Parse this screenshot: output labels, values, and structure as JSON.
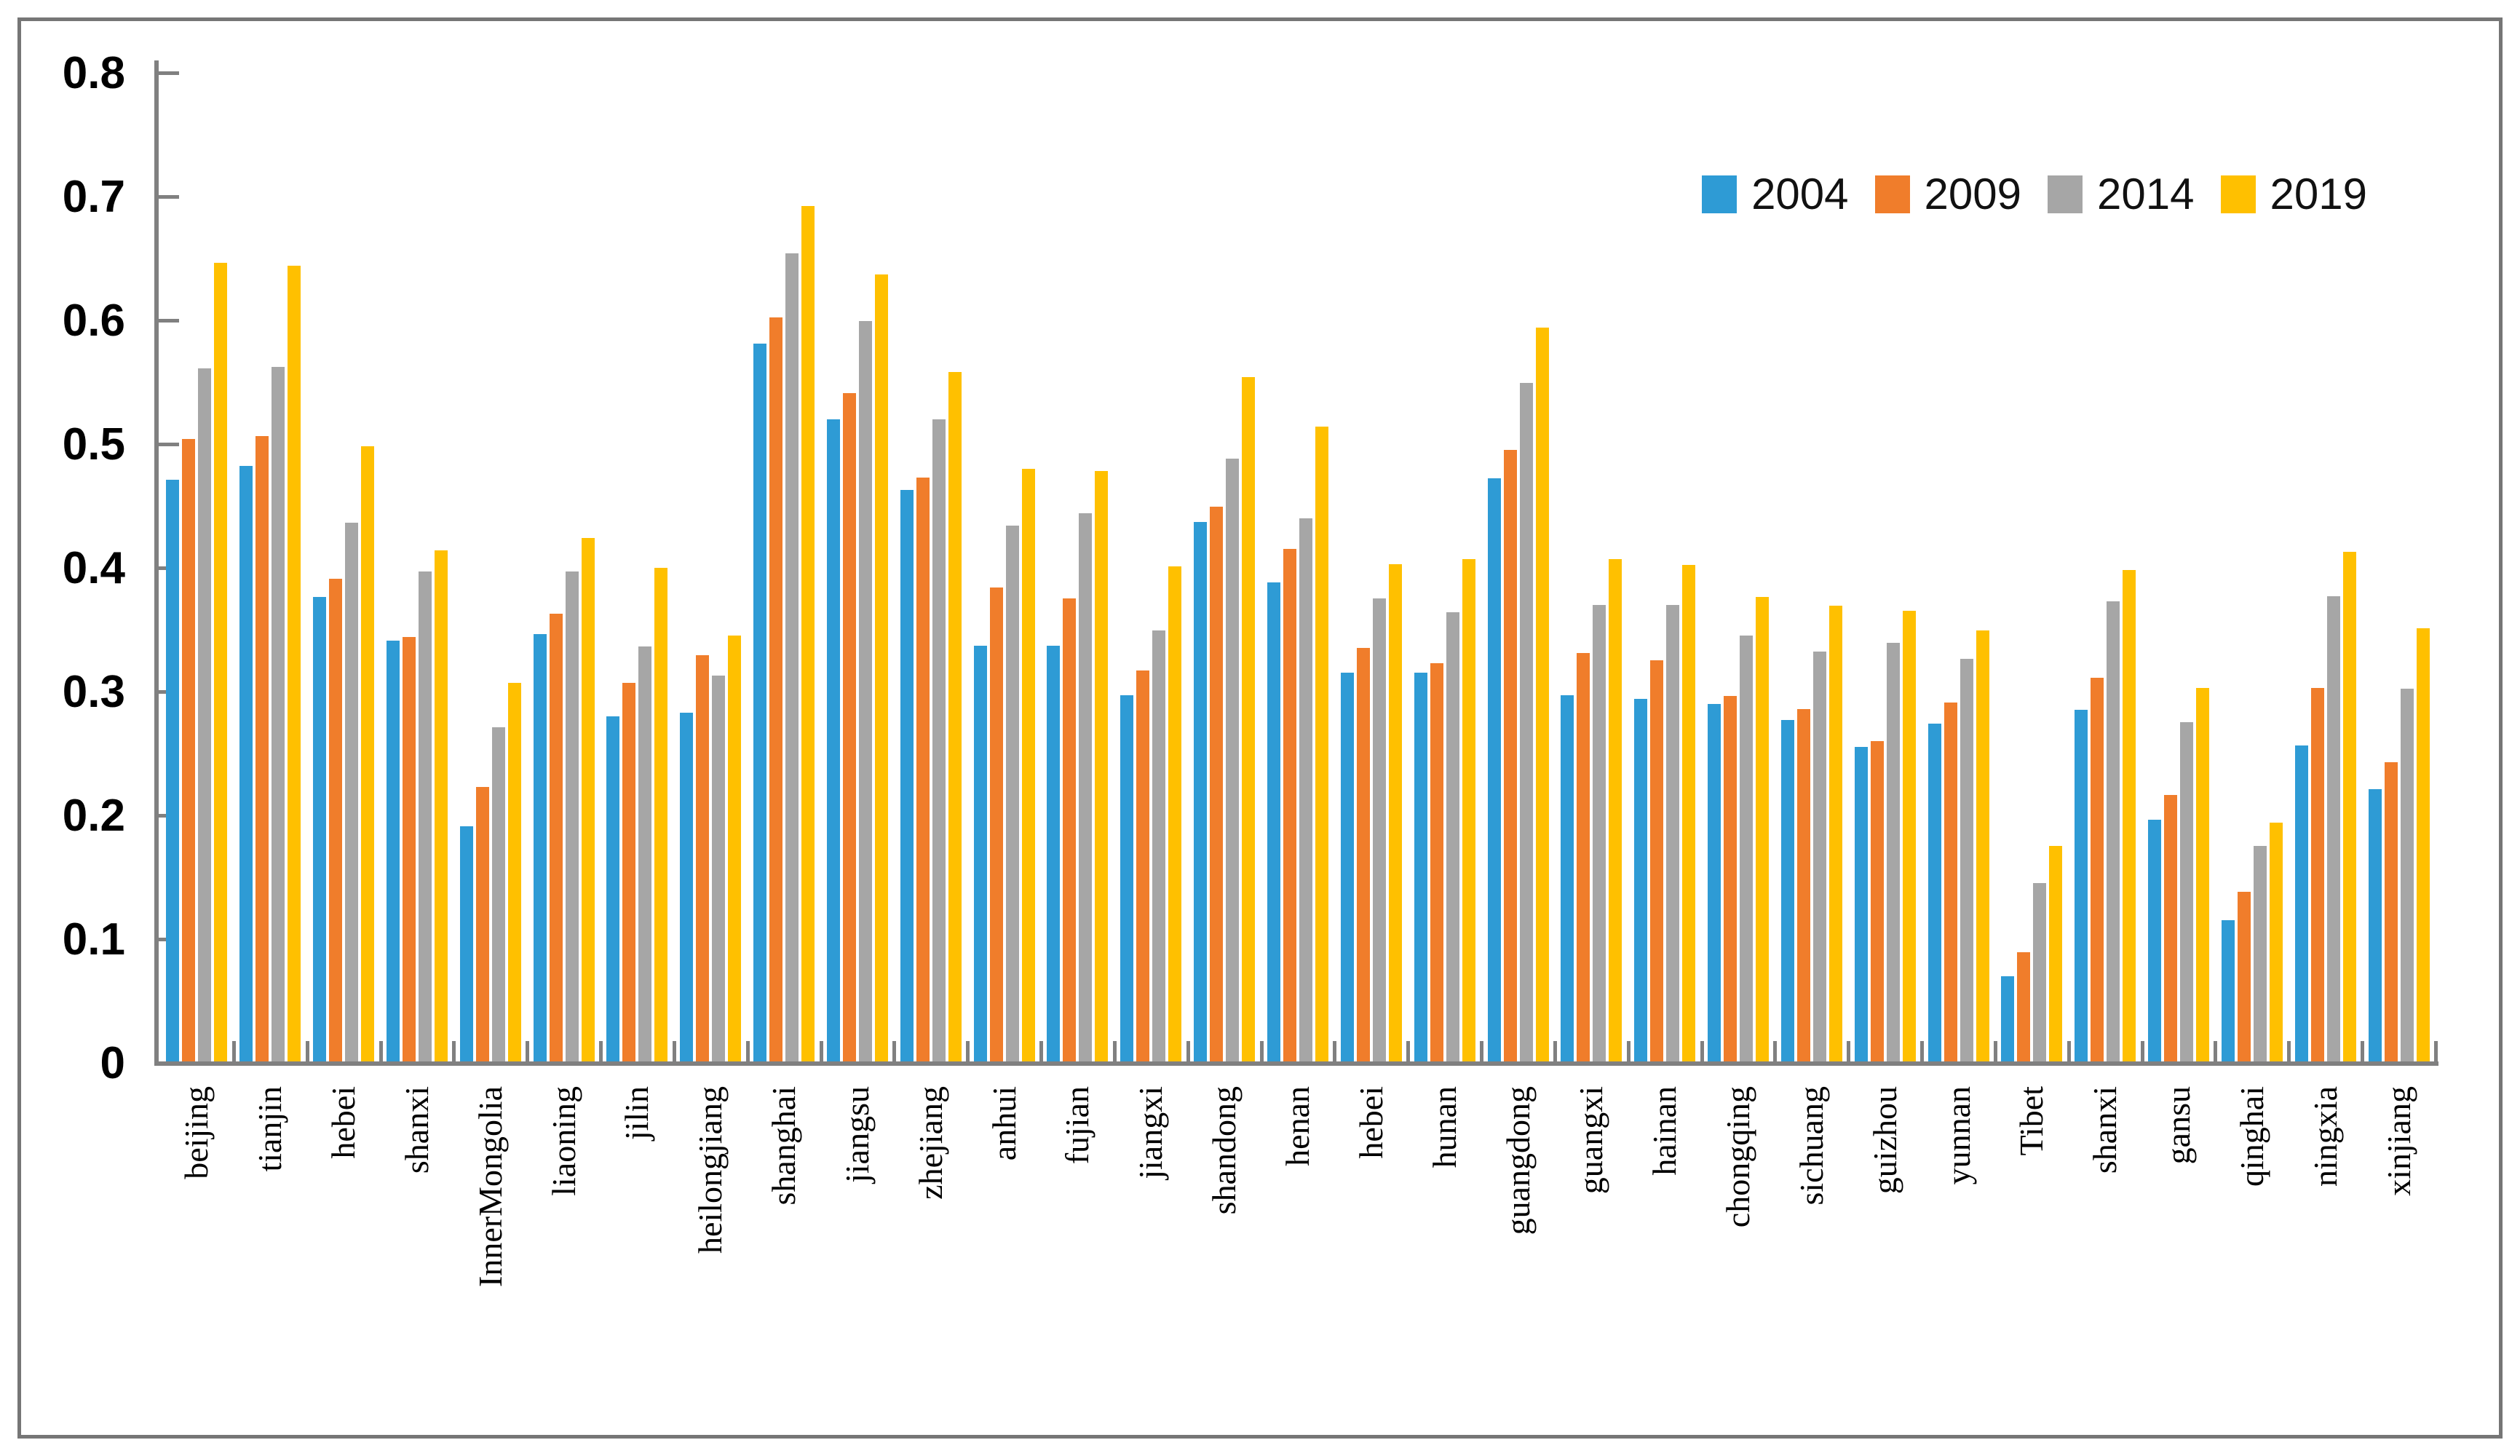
{
  "chart_data": {
    "type": "bar",
    "title": "",
    "xlabel": "",
    "ylabel": "",
    "ylim": [
      0,
      0.8
    ],
    "grid": false,
    "legend_position": "top-right",
    "ytick_labels": [
      "0",
      "0.1",
      "0.2",
      "0.3",
      "0.4",
      "0.5",
      "0.6",
      "0.7",
      "0.8"
    ],
    "categories": [
      "beijing",
      "tianjin",
      "hebei",
      "shanxi",
      "InnerMongolia",
      "liaoning",
      "jilin",
      "heilongjiang",
      "shanghai",
      "jiangsu",
      "zhejiang",
      "anhui",
      "fujian",
      "jiangxi",
      "shandong",
      "henan",
      "hebei",
      "hunan",
      "guangdong",
      "guangxi",
      "hainan",
      "chongqing",
      "sichuang",
      "guizhou",
      "yunnan",
      "Tibet",
      "shanxi",
      "gansu",
      "qinghai",
      "ningxia",
      "xinjiang"
    ],
    "series": [
      {
        "name": "2004",
        "color": "#2E9BD5",
        "values": [
          0.47,
          0.481,
          0.375,
          0.34,
          0.19,
          0.345,
          0.279,
          0.282,
          0.58,
          0.519,
          0.462,
          0.336,
          0.336,
          0.296,
          0.436,
          0.387,
          0.314,
          0.314,
          0.471,
          0.296,
          0.293,
          0.289,
          0.276,
          0.254,
          0.273,
          0.069,
          0.284,
          0.195,
          0.114,
          0.255,
          0.22
        ]
      },
      {
        "name": "2009",
        "color": "#F07D2B",
        "values": [
          0.503,
          0.505,
          0.39,
          0.343,
          0.222,
          0.362,
          0.306,
          0.328,
          0.601,
          0.54,
          0.472,
          0.383,
          0.374,
          0.316,
          0.448,
          0.414,
          0.334,
          0.322,
          0.494,
          0.33,
          0.324,
          0.295,
          0.285,
          0.259,
          0.29,
          0.088,
          0.31,
          0.215,
          0.137,
          0.302,
          0.242
        ]
      },
      {
        "name": "2014",
        "color": "#A6A6A6",
        "values": [
          0.56,
          0.561,
          0.435,
          0.396,
          0.27,
          0.396,
          0.335,
          0.312,
          0.653,
          0.598,
          0.519,
          0.433,
          0.443,
          0.348,
          0.487,
          0.439,
          0.374,
          0.363,
          0.548,
          0.369,
          0.369,
          0.344,
          0.331,
          0.338,
          0.325,
          0.144,
          0.372,
          0.274,
          0.174,
          0.376,
          0.301
        ]
      },
      {
        "name": "2019",
        "color": "#FFC000",
        "values": [
          0.645,
          0.643,
          0.497,
          0.413,
          0.306,
          0.423,
          0.399,
          0.344,
          0.691,
          0.636,
          0.557,
          0.479,
          0.477,
          0.4,
          0.553,
          0.513,
          0.402,
          0.406,
          0.593,
          0.406,
          0.401,
          0.375,
          0.368,
          0.364,
          0.348,
          0.174,
          0.397,
          0.302,
          0.193,
          0.412,
          0.35
        ]
      }
    ],
    "colors": {
      "axis": "#808080",
      "frame": "#767676",
      "text": "#000000"
    }
  }
}
